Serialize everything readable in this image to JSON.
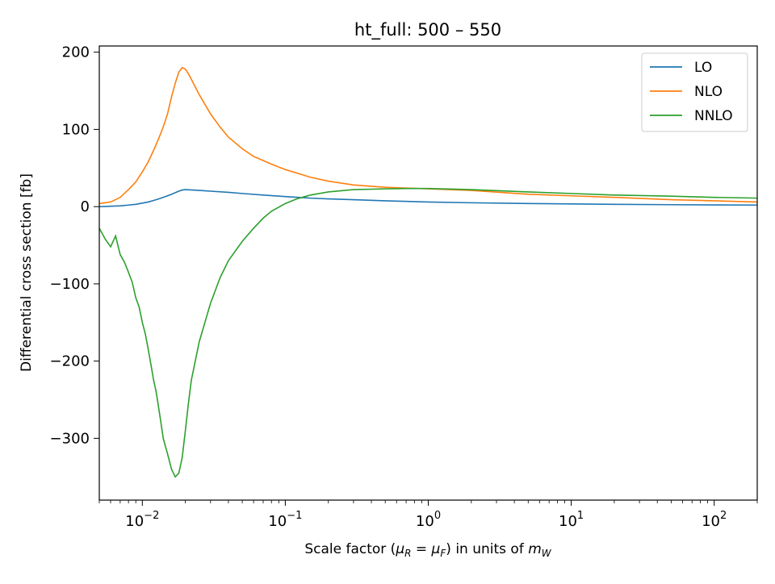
{
  "chart_data": {
    "type": "line",
    "title": "ht_full: 500 – 550",
    "xlabel_parts": {
      "prefix": "Scale factor (",
      "mu": "μ",
      "sub_r": "R",
      "eq": " = ",
      "sub_f": "F",
      "mid": ") in units of ",
      "m": "m",
      "sub_w": "W"
    },
    "ylabel": "Differential cross section [fb]",
    "x_scale": "log",
    "xlim": [
      0.005,
      200
    ],
    "ylim": [
      -380,
      208
    ],
    "x_ticks": [
      {
        "value": 0.01,
        "base": "10",
        "exp": "−2"
      },
      {
        "value": 0.1,
        "base": "10",
        "exp": "−1"
      },
      {
        "value": 1,
        "base": "10",
        "exp": "0"
      },
      {
        "value": 10,
        "base": "10",
        "exp": "1"
      },
      {
        "value": 100,
        "base": "10",
        "exp": "2"
      }
    ],
    "y_ticks": [
      {
        "value": 200,
        "label": "200"
      },
      {
        "value": 100,
        "label": "100"
      },
      {
        "value": 0,
        "label": "0"
      },
      {
        "value": -100,
        "label": "−100"
      },
      {
        "value": -200,
        "label": "−200"
      },
      {
        "value": -300,
        "label": "−300"
      }
    ],
    "grid": false,
    "legend_position": "top-right",
    "series": [
      {
        "name": "LO",
        "color": "#1f77b4",
        "points": [
          [
            0.005,
            0
          ],
          [
            0.006,
            0.5
          ],
          [
            0.007,
            1
          ],
          [
            0.008,
            2
          ],
          [
            0.009,
            3
          ],
          [
            0.01,
            4.5
          ],
          [
            0.011,
            6
          ],
          [
            0.012,
            8
          ],
          [
            0.013,
            10
          ],
          [
            0.014,
            12
          ],
          [
            0.015,
            14
          ],
          [
            0.016,
            16
          ],
          [
            0.017,
            18
          ],
          [
            0.018,
            20
          ],
          [
            0.019,
            21.5
          ],
          [
            0.02,
            22
          ],
          [
            0.025,
            21
          ],
          [
            0.03,
            20
          ],
          [
            0.04,
            18.5
          ],
          [
            0.05,
            17
          ],
          [
            0.07,
            15
          ],
          [
            0.1,
            13
          ],
          [
            0.15,
            11
          ],
          [
            0.2,
            10
          ],
          [
            0.3,
            9
          ],
          [
            0.5,
            7.5
          ],
          [
            1,
            6
          ],
          [
            2,
            5
          ],
          [
            5,
            4
          ],
          [
            10,
            3.5
          ],
          [
            20,
            3
          ],
          [
            50,
            2.5
          ],
          [
            100,
            2.2
          ],
          [
            200,
            2
          ]
        ]
      },
      {
        "name": "NLO",
        "color": "#ff7f0e",
        "points": [
          [
            0.005,
            4
          ],
          [
            0.006,
            6
          ],
          [
            0.007,
            12
          ],
          [
            0.008,
            22
          ],
          [
            0.009,
            32
          ],
          [
            0.01,
            45
          ],
          [
            0.011,
            58
          ],
          [
            0.012,
            73
          ],
          [
            0.013,
            88
          ],
          [
            0.014,
            103
          ],
          [
            0.015,
            120
          ],
          [
            0.016,
            142
          ],
          [
            0.017,
            160
          ],
          [
            0.018,
            174
          ],
          [
            0.019,
            180
          ],
          [
            0.02,
            178
          ],
          [
            0.021,
            172
          ],
          [
            0.022,
            165
          ],
          [
            0.025,
            145
          ],
          [
            0.03,
            120
          ],
          [
            0.035,
            103
          ],
          [
            0.04,
            90
          ],
          [
            0.05,
            75
          ],
          [
            0.06,
            65
          ],
          [
            0.08,
            55
          ],
          [
            0.1,
            48
          ],
          [
            0.15,
            38
          ],
          [
            0.2,
            33
          ],
          [
            0.3,
            28
          ],
          [
            0.5,
            25
          ],
          [
            0.7,
            24
          ],
          [
            1,
            23
          ],
          [
            2,
            21
          ],
          [
            5,
            16
          ],
          [
            10,
            14
          ],
          [
            20,
            12
          ],
          [
            50,
            9
          ],
          [
            100,
            7.5
          ],
          [
            200,
            6
          ]
        ]
      },
      {
        "name": "NNLO",
        "color": "#2ca02c",
        "points": [
          [
            0.005,
            -28
          ],
          [
            0.0055,
            -42
          ],
          [
            0.006,
            -52
          ],
          [
            0.0065,
            -38
          ],
          [
            0.007,
            -62
          ],
          [
            0.0075,
            -72
          ],
          [
            0.008,
            -85
          ],
          [
            0.0085,
            -98
          ],
          [
            0.009,
            -118
          ],
          [
            0.0095,
            -130
          ],
          [
            0.01,
            -150
          ],
          [
            0.0105,
            -165
          ],
          [
            0.011,
            -185
          ],
          [
            0.0115,
            -205
          ],
          [
            0.012,
            -225
          ],
          [
            0.0125,
            -240
          ],
          [
            0.013,
            -260
          ],
          [
            0.0135,
            -280
          ],
          [
            0.014,
            -300
          ],
          [
            0.015,
            -320
          ],
          [
            0.016,
            -340
          ],
          [
            0.017,
            -350
          ],
          [
            0.018,
            -345
          ],
          [
            0.019,
            -325
          ],
          [
            0.02,
            -290
          ],
          [
            0.021,
            -255
          ],
          [
            0.022,
            -225
          ],
          [
            0.025,
            -175
          ],
          [
            0.03,
            -125
          ],
          [
            0.035,
            -92
          ],
          [
            0.04,
            -70
          ],
          [
            0.05,
            -45
          ],
          [
            0.06,
            -28
          ],
          [
            0.07,
            -15
          ],
          [
            0.08,
            -6
          ],
          [
            0.1,
            4
          ],
          [
            0.12,
            10
          ],
          [
            0.15,
            15
          ],
          [
            0.2,
            19
          ],
          [
            0.3,
            22
          ],
          [
            0.5,
            23
          ],
          [
            0.7,
            23.5
          ],
          [
            1,
            23.5
          ],
          [
            2,
            22
          ],
          [
            5,
            19
          ],
          [
            10,
            17
          ],
          [
            20,
            15
          ],
          [
            50,
            13.5
          ],
          [
            100,
            12
          ],
          [
            200,
            11
          ]
        ]
      }
    ]
  }
}
